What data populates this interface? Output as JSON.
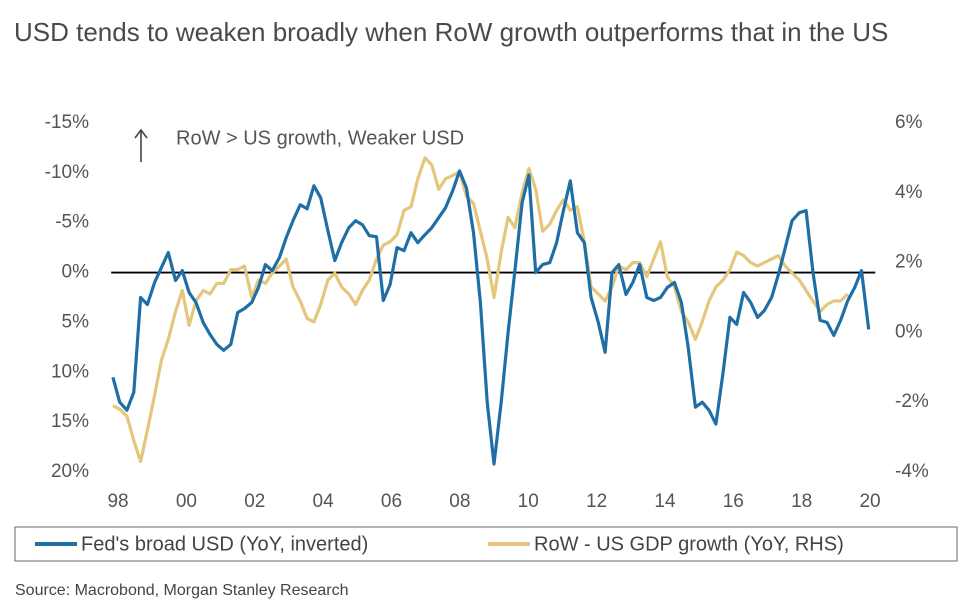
{
  "chart_data": {
    "type": "line",
    "title": "USD tends to weaken broadly when RoW growth outperforms that in the US",
    "annotation": "RoW > US growth, Weaker USD",
    "source": "Source: Macrobond, Morgan Stanley Research",
    "xlim": [
      1997.8,
      2020.3
    ],
    "xticks": [
      {
        "value": 1998,
        "label": "98"
      },
      {
        "value": 2000,
        "label": "00"
      },
      {
        "value": 2002,
        "label": "02"
      },
      {
        "value": 2004,
        "label": "04"
      },
      {
        "value": 2006,
        "label": "06"
      },
      {
        "value": 2008,
        "label": "08"
      },
      {
        "value": 2010,
        "label": "10"
      },
      {
        "value": 2012,
        "label": "12"
      },
      {
        "value": 2014,
        "label": "14"
      },
      {
        "value": 2016,
        "label": "16"
      },
      {
        "value": 2018,
        "label": "18"
      },
      {
        "value": 2020,
        "label": "20"
      }
    ],
    "ylim": [
      -15,
      20
    ],
    "y_inverted": true,
    "yticks": [
      {
        "value": -15,
        "label": "-15%"
      },
      {
        "value": -10,
        "label": "-10%"
      },
      {
        "value": -5,
        "label": "-5%"
      },
      {
        "value": 0,
        "label": "0%"
      },
      {
        "value": 5,
        "label": "5%"
      },
      {
        "value": 10,
        "label": "10%"
      },
      {
        "value": 15,
        "label": "15%"
      },
      {
        "value": 20,
        "label": "20%"
      }
    ],
    "y2lim": [
      -4,
      6
    ],
    "y2ticks": [
      {
        "value": -4,
        "label": "-4%"
      },
      {
        "value": -2,
        "label": "-2%"
      },
      {
        "value": 0,
        "label": "0%"
      },
      {
        "value": 2,
        "label": "2%"
      },
      {
        "value": 4,
        "label": "4%"
      },
      {
        "value": 6,
        "label": "6%"
      }
    ],
    "legend": "bottom",
    "x": [
      1997.85,
      1998.05,
      1998.26,
      1998.46,
      1998.66,
      1998.86,
      1999.07,
      1999.27,
      1999.47,
      1999.68,
      1999.88,
      2000.08,
      2000.28,
      2000.49,
      2000.69,
      2000.89,
      2001.09,
      2001.3,
      2001.5,
      2001.7,
      2001.91,
      2002.11,
      2002.31,
      2002.51,
      2002.72,
      2002.92,
      2003.12,
      2003.33,
      2003.53,
      2003.73,
      2003.93,
      2004.14,
      2004.34,
      2004.54,
      2004.75,
      2004.95,
      2005.15,
      2005.35,
      2005.56,
      2005.76,
      2005.96,
      2006.16,
      2006.37,
      2006.57,
      2006.77,
      2006.98,
      2007.18,
      2007.38,
      2007.58,
      2007.79,
      2007.99,
      2008.19,
      2008.4,
      2008.6,
      2008.8,
      2009.0,
      2009.21,
      2009.41,
      2009.61,
      2009.82,
      2010.02,
      2010.22,
      2010.42,
      2010.63,
      2010.83,
      2011.03,
      2011.23,
      2011.44,
      2011.64,
      2011.84,
      2012.05,
      2012.25,
      2012.45,
      2012.65,
      2012.86,
      2013.06,
      2013.26,
      2013.47,
      2013.67,
      2013.87,
      2014.07,
      2014.28,
      2014.48,
      2014.68,
      2014.89,
      2015.09,
      2015.29,
      2015.49,
      2015.7,
      2015.9,
      2016.1,
      2016.3,
      2016.51,
      2016.71,
      2016.91,
      2017.12,
      2017.32,
      2017.52,
      2017.72,
      2017.93,
      2018.13,
      2018.33,
      2018.54,
      2018.74,
      2018.94,
      2019.14,
      2019.35,
      2019.55,
      2019.75,
      2019.96
    ],
    "series": [
      {
        "name": "Fed's broad USD (YoY, inverted)",
        "color": "#1f6fa6",
        "axis": "y",
        "values": [
          10.5,
          13,
          13.8,
          12,
          2.5,
          3.2,
          1,
          -0.5,
          -2,
          0.8,
          -0.2,
          2,
          3,
          5,
          6.2,
          7.2,
          7.8,
          7.2,
          4,
          3.6,
          3,
          1.5,
          -0.8,
          -0.2,
          -1.5,
          -3.5,
          -5.2,
          -6.8,
          -6.4,
          -8.7,
          -7.5,
          -4.2,
          -1.2,
          -3,
          -4.5,
          -5.2,
          -4.8,
          -3.7,
          -3.6,
          2.8,
          1.2,
          -2.5,
          -2.2,
          -4,
          -3,
          -3.8,
          -4.5,
          -5.5,
          -6.5,
          -8.2,
          -10.2,
          -8.5,
          -4,
          3,
          13,
          19.2,
          13,
          6,
          -0.2,
          -7,
          -9.8,
          0,
          -0.8,
          -1,
          -3,
          -6.2,
          -9.2,
          -4,
          -3,
          2.5,
          5,
          8,
          0,
          -0.8,
          2.2,
          1,
          -0.8,
          2.5,
          2.8,
          2.5,
          1.5,
          1,
          3,
          7.5,
          13.5,
          13,
          13.8,
          15.2,
          10,
          4.5,
          5.2,
          2,
          3,
          4.5,
          3.8,
          2.5,
          0.2,
          -2.5,
          -5.2,
          -6,
          -6.2,
          0,
          4.8,
          5,
          6.3,
          4.8,
          2.8,
          1.5,
          -0.2,
          5.7
        ]
      },
      {
        "name": "RoW - US GDP growth (YoY, RHS)",
        "color": "#e4c67c",
        "axis": "y2",
        "values": [
          -2.1,
          -2.2,
          -2.4,
          -3.1,
          -3.7,
          -2.8,
          -1.8,
          -0.8,
          -0.2,
          0.6,
          1.2,
          0.2,
          0.9,
          1.2,
          1.1,
          1.4,
          1.4,
          1.8,
          1.8,
          1.9,
          1.0,
          1.5,
          1.4,
          1.7,
          1.9,
          2.1,
          1.3,
          0.9,
          0.4,
          0.3,
          0.8,
          1.5,
          1.7,
          1.3,
          1.1,
          0.8,
          1.2,
          1.5,
          2.1,
          2.5,
          2.6,
          2.8,
          3.5,
          3.6,
          4.4,
          5.0,
          4.8,
          4.1,
          4.4,
          4.5,
          4.6,
          3.9,
          3.7,
          2.9,
          2.1,
          1.0,
          2.3,
          3.3,
          3.0,
          4.0,
          4.7,
          4.1,
          2.9,
          3.1,
          3.5,
          3.8,
          3.5,
          3.6,
          2.6,
          1.3,
          1.1,
          0.9,
          1.3,
          1.9,
          1.8,
          2.0,
          2.0,
          1.6,
          2.1,
          2.6,
          1.6,
          1.3,
          0.6,
          0.3,
          -0.2,
          0.3,
          0.9,
          1.3,
          1.5,
          1.8,
          2.3,
          2.2,
          2.0,
          1.9,
          2.0,
          2.1,
          2.2,
          1.9,
          1.7,
          1.5,
          1.2,
          0.9,
          0.6,
          0.8,
          0.9,
          0.9,
          1.1,
          null,
          null,
          null
        ]
      }
    ]
  }
}
